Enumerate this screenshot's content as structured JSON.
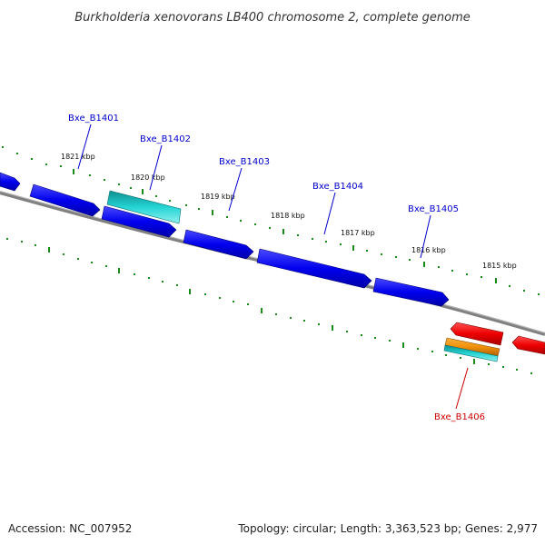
{
  "title": "Burkholderia xenovorans LB400 chromosome 2, complete genome",
  "footer": {
    "accession": "Accession: NC_007952",
    "summary": "Topology: circular; Length: 3,363,523 bp; Genes: 2,977"
  },
  "colors": {
    "background": "#ffffff",
    "backbone": "#808080",
    "tick": "#1a8a1a",
    "forward_gene": "#0000ee",
    "reverse_gene": "#ee0000",
    "rna_feature": "#20c8c8",
    "pseudo_feature": "#f0900a",
    "forward_label": "#0000cc",
    "reverse_label": "#cc0000"
  },
  "scale_labels": [
    "1821 kbp",
    "1820 kbp",
    "1819 kbp",
    "1818 kbp",
    "1817 kbp",
    "1816 kbp",
    "1815 kbp"
  ],
  "gene_labels": [
    {
      "text": "Bxe_B1401",
      "strand": "forward"
    },
    {
      "text": "Bxe_B1402",
      "strand": "forward"
    },
    {
      "text": "Bxe_B1403",
      "strand": "forward"
    },
    {
      "text": "Bxe_B1404",
      "strand": "forward"
    },
    {
      "text": "Bxe_B1405",
      "strand": "forward"
    },
    {
      "text": "Bxe_B1406",
      "strand": "reverse"
    }
  ]
}
